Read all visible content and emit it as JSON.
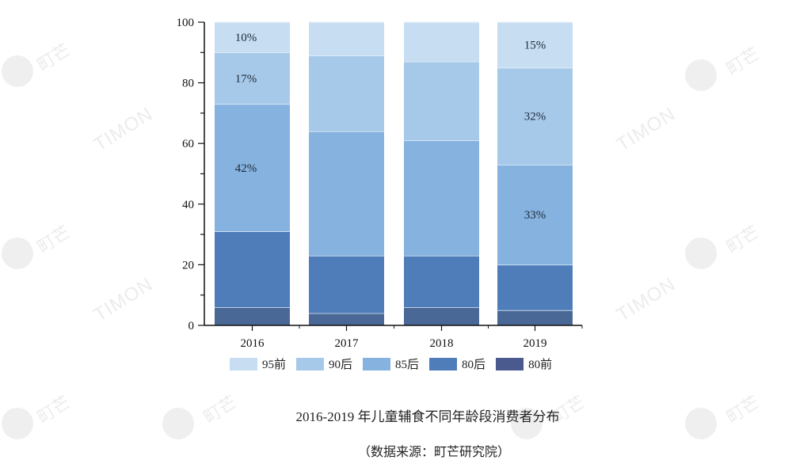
{
  "chart_data": {
    "type": "bar",
    "stacked": true,
    "percent": true,
    "title": "2016-2019 年儿童辅食不同年龄段消费者分布",
    "source": "（数据来源：町芒研究院）",
    "xlabel": "",
    "ylabel": "",
    "ylim": [
      0,
      100
    ],
    "yticks": [
      0,
      20,
      40,
      60,
      80,
      100
    ],
    "grid": false,
    "legend_position": "bottom",
    "categories": [
      "2016",
      "2017",
      "2018",
      "2019"
    ],
    "series": [
      {
        "name": "80前",
        "color": "#4a6896",
        "values": [
          6,
          4,
          6,
          5
        ]
      },
      {
        "name": "80后",
        "color": "#4f7dba",
        "values": [
          25,
          19,
          17,
          15
        ]
      },
      {
        "name": "85后",
        "color": "#85b2de",
        "values": [
          42,
          41,
          38,
          33
        ]
      },
      {
        "name": "90后",
        "color": "#a7c9e9",
        "values": [
          17,
          25,
          26,
          32
        ]
      },
      {
        "name": "95前",
        "color": "#c7ddf2",
        "values": [
          10,
          11,
          13,
          15
        ]
      }
    ],
    "annotations": [
      {
        "category": "2016",
        "series": "95前",
        "text": "10%"
      },
      {
        "category": "2016",
        "series": "90后",
        "text": "17%"
      },
      {
        "category": "2016",
        "series": "85后",
        "text": "42%"
      },
      {
        "category": "2019",
        "series": "95前",
        "text": "15%"
      },
      {
        "category": "2019",
        "series": "90后",
        "text": "32%"
      },
      {
        "category": "2019",
        "series": "85后",
        "text": "33%"
      }
    ]
  },
  "legend": [
    {
      "label": "95前",
      "color": "#c7ddf2"
    },
    {
      "label": "90后",
      "color": "#a7c9e9"
    },
    {
      "label": "85后",
      "color": "#85b2de"
    },
    {
      "label": "80后",
      "color": "#4f7dba"
    },
    {
      "label": "80前",
      "color": "#4a5a8e"
    }
  ],
  "captions": {
    "title": "2016-2019 年儿童辅食不同年龄段消费者分布",
    "source": "（数据来源：町芒研究院）"
  },
  "watermark": {
    "brand": "TIMON",
    "cn": "町芒"
  }
}
